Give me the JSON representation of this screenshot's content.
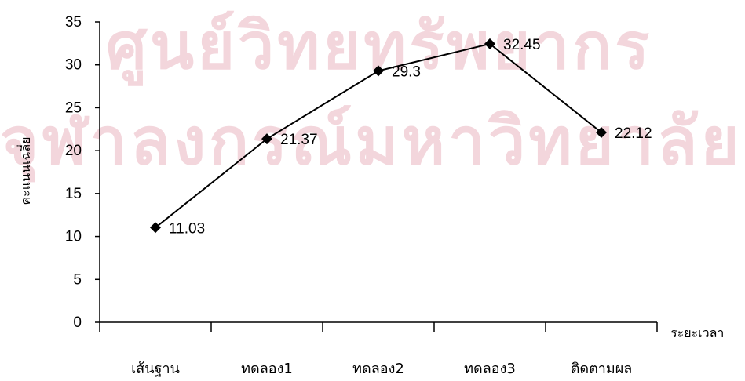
{
  "watermark": {
    "line1": "ศูนย์วิทยทรัพยากร",
    "line2": "จุฬาลงกรณ์มหาวิทยาลัย"
  },
  "chart_data": {
    "type": "line",
    "categories": [
      "เส้นฐาน",
      "ทดลอง1",
      "ทดลอง2",
      "ทดลอง3",
      "ติดตามผล"
    ],
    "series": [
      {
        "values": [
          11.03,
          21.37,
          29.3,
          32.45,
          22.12
        ]
      }
    ],
    "data_labels": [
      "11.03",
      "21.37",
      "29.3",
      "32.45",
      "22.12"
    ],
    "ylabel": "คะแนนเฉลี่ย",
    "xlabel": "ระยะเวลา",
    "ylim": [
      0,
      35
    ],
    "yticks": [
      0,
      5,
      10,
      15,
      20,
      25,
      30,
      35
    ],
    "marker": "diamond",
    "line_color": "#000000",
    "grid": false,
    "legend": "none"
  }
}
